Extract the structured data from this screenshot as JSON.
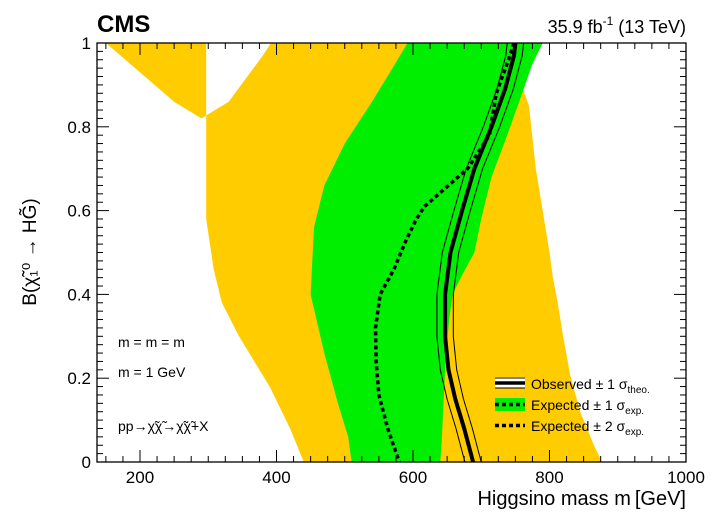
{
  "header": {
    "experiment": "CMS",
    "lumi_value": "35.9 fb",
    "lumi_exp": "-1",
    "energy": " (13 TeV)"
  },
  "chart_data": {
    "type": "area",
    "title": "",
    "xlabel": "Higgsino mass m",
    "xlabel_unit": "[GeV]",
    "ylabel": "B(χ̃₁⁰ → HG̃)",
    "xlim": [
      137,
      1000
    ],
    "ylim": [
      0,
      1
    ],
    "x_ticks": [
      200,
      400,
      600,
      800,
      1000
    ],
    "y_ticks": [
      0,
      0.2,
      0.4,
      0.6,
      0.8,
      1
    ],
    "y_tick_labels": [
      "0",
      "0.2",
      "0.4",
      "0.6",
      "0.8",
      "1"
    ],
    "grid": false,
    "legend_position": "bottom-right",
    "band_2sigma": {
      "upper": [
        [
          150,
          1.0
        ],
        [
          250,
          0.86
        ],
        [
          290,
          0.82
        ],
        [
          330,
          0.86
        ],
        [
          380,
          0.97
        ],
        [
          392,
          1.0
        ],
        [
          720,
          1.0
        ],
        [
          750,
          0.94
        ],
        [
          770,
          0.85
        ],
        [
          780,
          0.7
        ],
        [
          790,
          0.6
        ],
        [
          800,
          0.5
        ],
        [
          805,
          0.44
        ],
        [
          812,
          0.38
        ],
        [
          820,
          0.3
        ],
        [
          830,
          0.21
        ],
        [
          845,
          0.12
        ],
        [
          865,
          0.04
        ],
        [
          877,
          0.0
        ]
      ],
      "lower": [
        [
          150,
          0.0
        ],
        [
          440,
          0.0
        ],
        [
          420,
          0.08
        ],
        [
          390,
          0.18
        ],
        [
          345,
          0.3
        ],
        [
          320,
          0.38
        ],
        [
          308,
          0.46
        ],
        [
          297,
          0.58
        ],
        [
          297,
          0.7
        ],
        [
          297,
          1.0
        ]
      ]
    },
    "band_1sigma": {
      "upper": [
        [
          592,
          1.0
        ],
        [
          790,
          1.0
        ],
        [
          775,
          0.95
        ],
        [
          760,
          0.88
        ],
        [
          738,
          0.78
        ],
        [
          715,
          0.68
        ],
        [
          700,
          0.58
        ],
        [
          690,
          0.5
        ],
        [
          670,
          0.44
        ],
        [
          658,
          0.4
        ],
        [
          653,
          0.34
        ],
        [
          648,
          0.25
        ],
        [
          645,
          0.15
        ],
        [
          642,
          0.05
        ],
        [
          640,
          0.0
        ]
      ],
      "lower": [
        [
          510,
          0.0
        ],
        [
          505,
          0.06
        ],
        [
          490,
          0.14
        ],
        [
          470,
          0.26
        ],
        [
          450,
          0.4
        ],
        [
          455,
          0.56
        ],
        [
          470,
          0.66
        ],
        [
          500,
          0.76
        ],
        [
          540,
          0.86
        ],
        [
          570,
          0.94
        ],
        [
          592,
          1.0
        ]
      ]
    },
    "series": [
      {
        "name": "Observed ± 1 σ",
        "name_sub": "theo.",
        "points": [
          [
            750,
            1.0
          ],
          [
            748,
            0.97
          ],
          [
            735,
            0.89
          ],
          [
            715,
            0.8
          ],
          [
            690,
            0.7
          ],
          [
            672,
            0.6
          ],
          [
            655,
            0.5
          ],
          [
            647,
            0.4
          ],
          [
            647,
            0.3
          ],
          [
            652,
            0.22
          ],
          [
            662,
            0.15
          ],
          [
            675,
            0.08
          ],
          [
            688,
            0.0
          ]
        ]
      },
      {
        "name": "Expected ± 1 σ",
        "name_sub": "exp.",
        "points": [
          [
            748,
            1.0
          ],
          [
            740,
            0.96
          ],
          [
            722,
            0.88
          ],
          [
            712,
            0.78
          ],
          [
            680,
            0.7
          ],
          [
            645,
            0.65
          ],
          [
            617,
            0.61
          ],
          [
            605,
            0.58
          ],
          [
            590,
            0.53
          ],
          [
            572,
            0.46
          ],
          [
            552,
            0.4
          ],
          [
            545,
            0.32
          ],
          [
            546,
            0.24
          ],
          [
            550,
            0.16
          ],
          [
            563,
            0.08
          ],
          [
            580,
            0.0
          ]
        ]
      },
      {
        "name": "Expected ± 2 σ",
        "name_sub": "exp."
      }
    ]
  },
  "annotations": {
    "mass_line1": "m = m = m",
    "mass_line2": "m = 1 GeV",
    "process": "pp→χ̃χ̃→χ̃χ̃+X"
  },
  "colors": {
    "band_2sigma": "#ffcc00",
    "band_1sigma": "#00ee00",
    "observed": "#000000",
    "expected": "#000000"
  }
}
